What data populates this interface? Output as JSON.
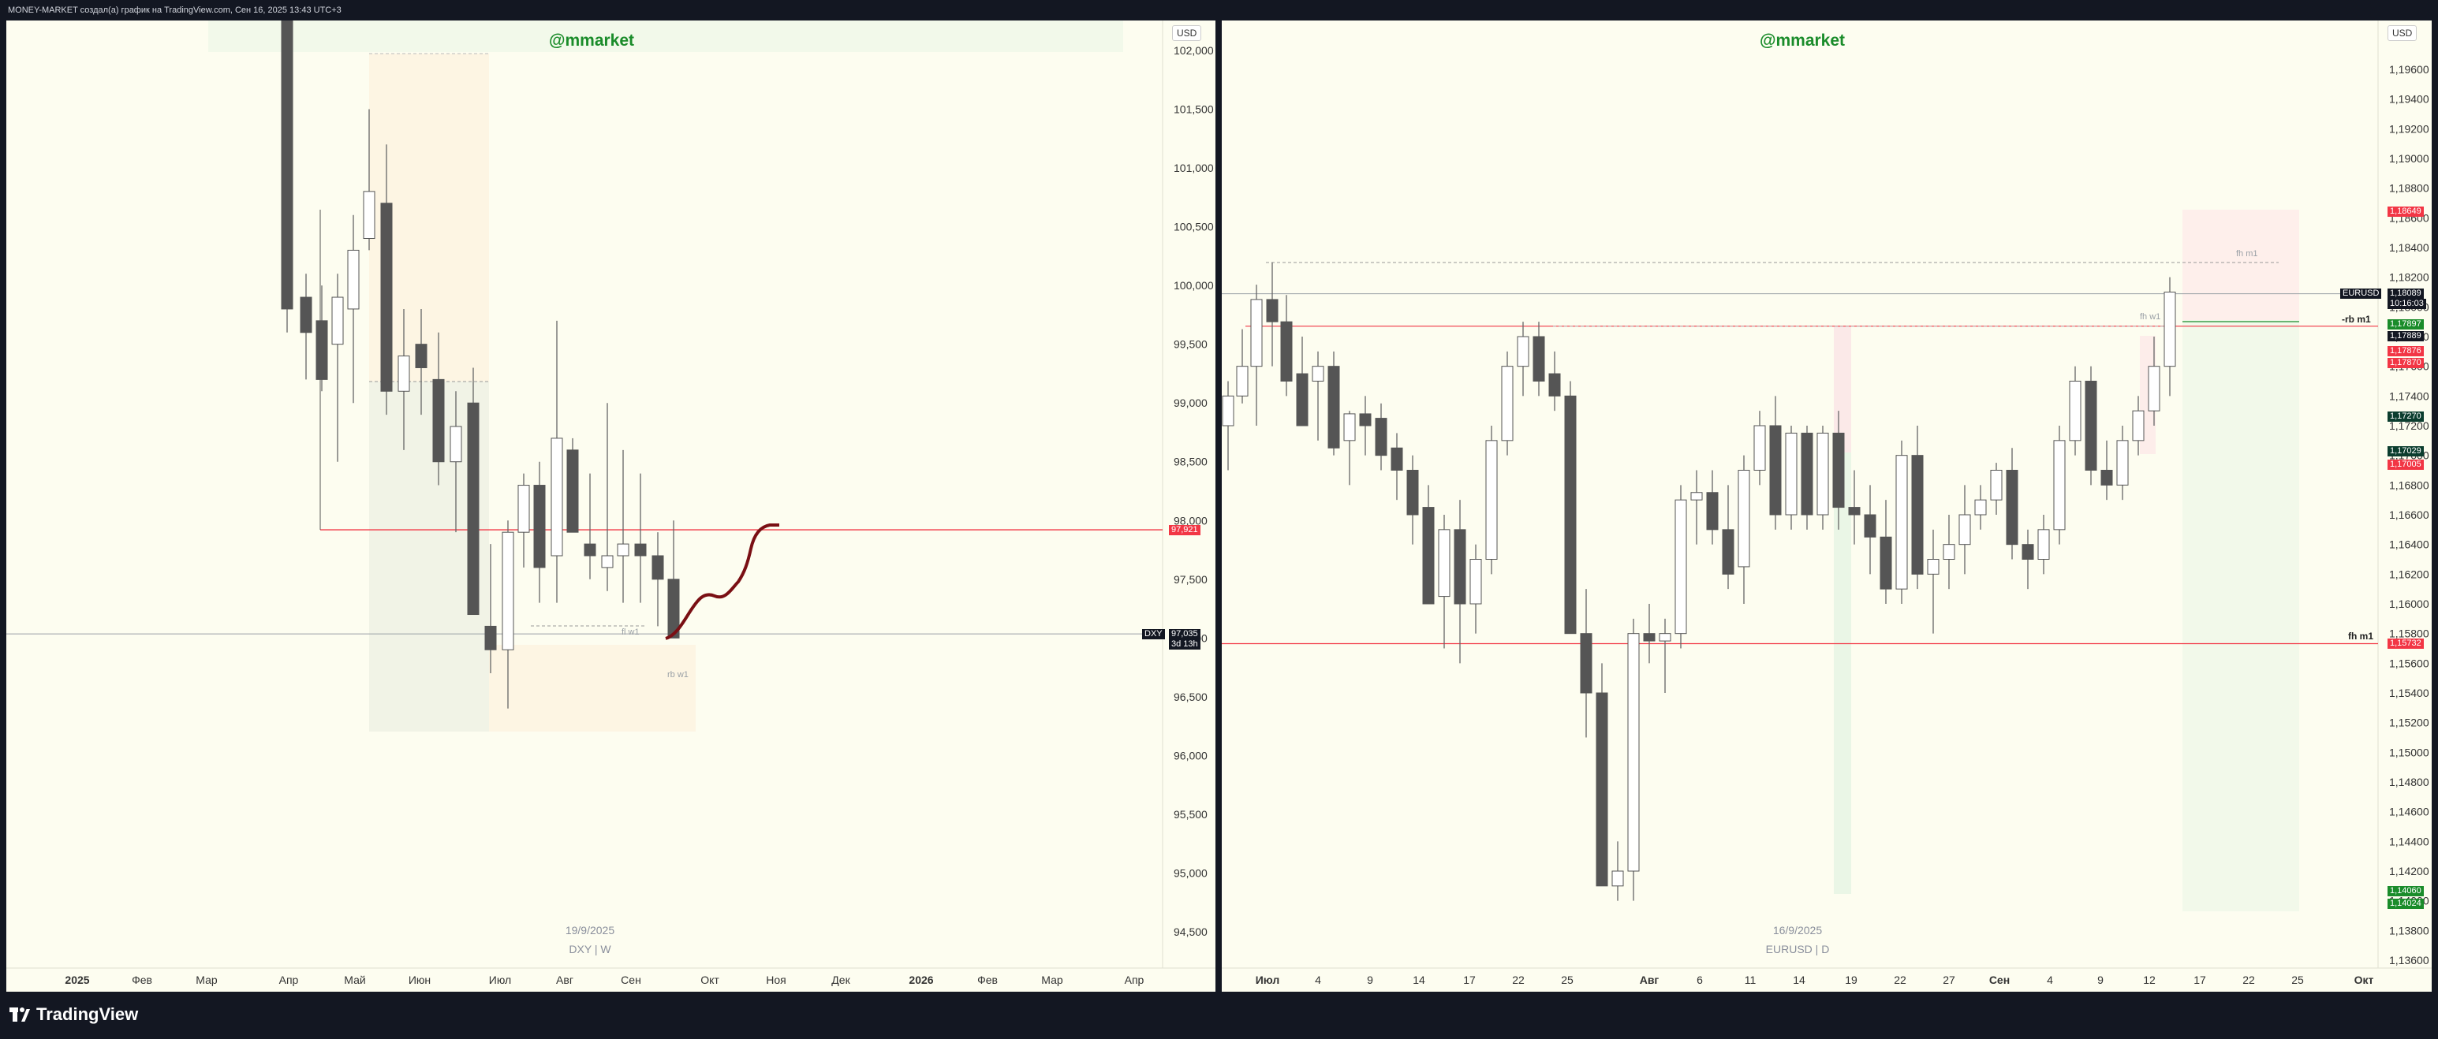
{
  "header": {
    "text": "MONEY-MARKET создал(а) график на TradingView.com, Сен 16, 2025 13:43 UTC+3"
  },
  "footer": {
    "brand": "TradingView",
    "logo_icon": "tradingview-logo-icon"
  },
  "left_chart": {
    "watermark": "@mmarket",
    "currency_button": "USD",
    "date_label": "19/9/2025",
    "symbol_label": "DXY | W",
    "price_axis": [
      "102,000",
      "101,500",
      "101,000",
      "100,500",
      "100,000",
      "99,500",
      "99,000",
      "98,500",
      "98,000",
      "97,500",
      "97,000",
      "96,500",
      "96,000",
      "95,500",
      "95,000",
      "94,500"
    ],
    "price_values": [
      102000,
      101500,
      101000,
      100500,
      100000,
      99500,
      99000,
      98500,
      98000,
      97500,
      97000,
      96500,
      96000,
      95500,
      95000,
      94500
    ],
    "time_axis": [
      "2025",
      "Фев",
      "Мар",
      "Апр",
      "Май",
      "Июн",
      "Июл",
      "Авг",
      "Сен",
      "Окт",
      "Ноя",
      "Дек",
      "2026",
      "Фев",
      "Мар",
      "Апр"
    ],
    "level_tag": {
      "value": "97,921",
      "color": "#f23645"
    },
    "symbol_tag": {
      "symbol": "DXY",
      "price": "97,035",
      "countdown": "3d 13h"
    },
    "annotations": [
      "fl w1",
      "rb w1"
    ]
  },
  "right_chart": {
    "watermark": "@mmarket",
    "currency_button": "USD",
    "date_label": "16/9/2025",
    "symbol_label": "EURUSD | D",
    "price_axis": [
      "1,19600",
      "1,19400",
      "1,19200",
      "1,19000",
      "1,18800",
      "1,18600",
      "1,18400",
      "1,18200",
      "1,18000",
      "1,17800",
      "1,17600",
      "1,17400",
      "1,17200",
      "1,17000",
      "1,16800",
      "1,16600",
      "1,16400",
      "1,16200",
      "1,16000",
      "1,15800",
      "1,15600",
      "1,15400",
      "1,15200",
      "1,15000",
      "1,14800",
      "1,14600",
      "1,14400",
      "1,14200",
      "1,14000",
      "1,13800",
      "1,13600"
    ],
    "price_values": [
      1.196,
      1.194,
      1.192,
      1.19,
      1.188,
      1.186,
      1.184,
      1.182,
      1.18,
      1.178,
      1.176,
      1.174,
      1.172,
      1.17,
      1.168,
      1.166,
      1.164,
      1.162,
      1.16,
      1.158,
      1.156,
      1.154,
      1.152,
      1.15,
      1.148,
      1.146,
      1.144,
      1.142,
      1.14,
      1.138,
      1.136
    ],
    "time_axis": [
      "Июл",
      "4",
      "9",
      "14",
      "17",
      "22",
      "25",
      "Авг",
      "6",
      "11",
      "14",
      "19",
      "22",
      "27",
      "Сен",
      "4",
      "9",
      "12",
      "17",
      "22",
      "25",
      "Окт"
    ],
    "tags": [
      {
        "value": "1,18649",
        "color": "#f23645"
      },
      {
        "value": "1,18089",
        "color": "#131722",
        "symbol": "EURUSD",
        "countdown": "10:16:03"
      },
      {
        "value": "1,17897",
        "color": "#1a8c2a"
      },
      {
        "value": "1,17889",
        "color": "#131722"
      },
      {
        "value": "1,17876",
        "color": "#f23645"
      },
      {
        "value": "1,17870",
        "color": "#f23645"
      },
      {
        "value": "1,17270",
        "color": "#0b3d2e"
      },
      {
        "value": "1,17029",
        "color": "#0b3d2e"
      },
      {
        "value": "1,17005",
        "color": "#f23645"
      },
      {
        "value": "1,15732",
        "color": "#f23645"
      },
      {
        "value": "1,14060",
        "color": "#1a8c2a"
      },
      {
        "value": "1,14024",
        "color": "#1a8c2a"
      }
    ],
    "level_labels": [
      "-rb m1",
      "fh m1"
    ],
    "annotations": [
      "fh m1",
      "fh w1"
    ]
  }
}
